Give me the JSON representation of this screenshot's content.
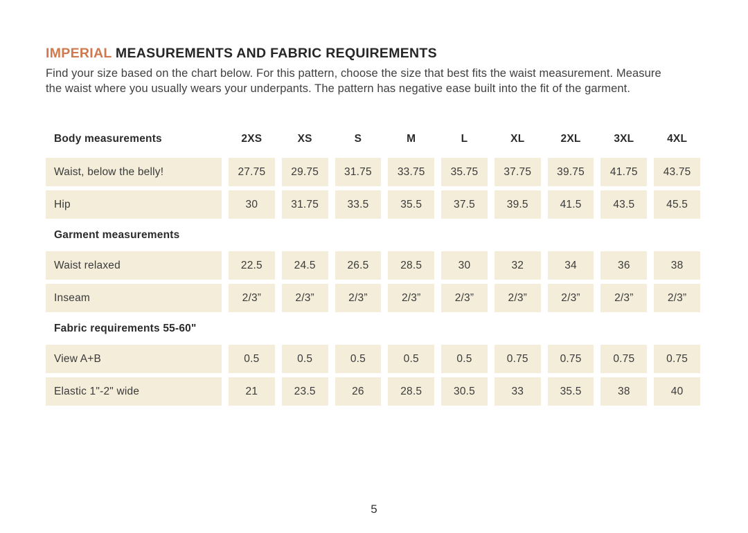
{
  "header": {
    "title_highlight": "IMPERIAL",
    "title_rest": " MEASUREMENTS AND FABRIC REQUIREMENTS",
    "intro_lines": [
      "Find your size based on the chart below. For this pattern, choose the size that best fits the waist measurement. Measure",
      "the waist where you usually wears your underpants. The pattern has negative ease built into the fit of the garment."
    ]
  },
  "colors": {
    "accent_orange": "#cf7a4e",
    "cell_background": "#f4edda",
    "title_text": "#262626",
    "body_text": "#3f3f3f"
  },
  "table": {
    "header_label": "Body measurements",
    "columns": [
      "2XS",
      "XS",
      "S",
      "M",
      "L",
      "XL",
      "2XL",
      "3XL",
      "4XL"
    ],
    "sections": [
      {
        "heading": null,
        "rows": [
          {
            "label": "Waist, below the belly!",
            "values": [
              "27.75",
              "29.75",
              "31.75",
              "33.75",
              "35.75",
              "37.75",
              "39.75",
              "41.75",
              "43.75"
            ]
          },
          {
            "label": "Hip",
            "values": [
              "30",
              "31.75",
              "33.5",
              "35.5",
              "37.5",
              "39.5",
              "41.5",
              "43.5",
              "45.5"
            ]
          }
        ]
      },
      {
        "heading": "Garment measurements",
        "rows": [
          {
            "label": "Waist relaxed",
            "values": [
              "22.5",
              "24.5",
              "26.5",
              "28.5",
              "30",
              "32",
              "34",
              "36",
              "38"
            ]
          },
          {
            "label": "Inseam",
            "values": [
              "2/3”",
              "2/3”",
              "2/3”",
              "2/3”",
              "2/3”",
              "2/3”",
              "2/3”",
              "2/3”",
              "2/3”"
            ]
          }
        ]
      },
      {
        "heading": "Fabric requirements 55-60\"",
        "rows": [
          {
            "label": "View A+B",
            "values": [
              "0.5",
              "0.5",
              "0.5",
              "0.5",
              "0.5",
              "0.75",
              "0.75",
              "0.75",
              "0.75"
            ]
          },
          {
            "label": "Elastic 1\"-2\" wide",
            "values": [
              "21",
              "23.5",
              "26",
              "28.5",
              "30.5",
              "33",
              "35.5",
              "38",
              "40"
            ]
          }
        ]
      }
    ]
  },
  "footer": {
    "page_number": "5"
  }
}
